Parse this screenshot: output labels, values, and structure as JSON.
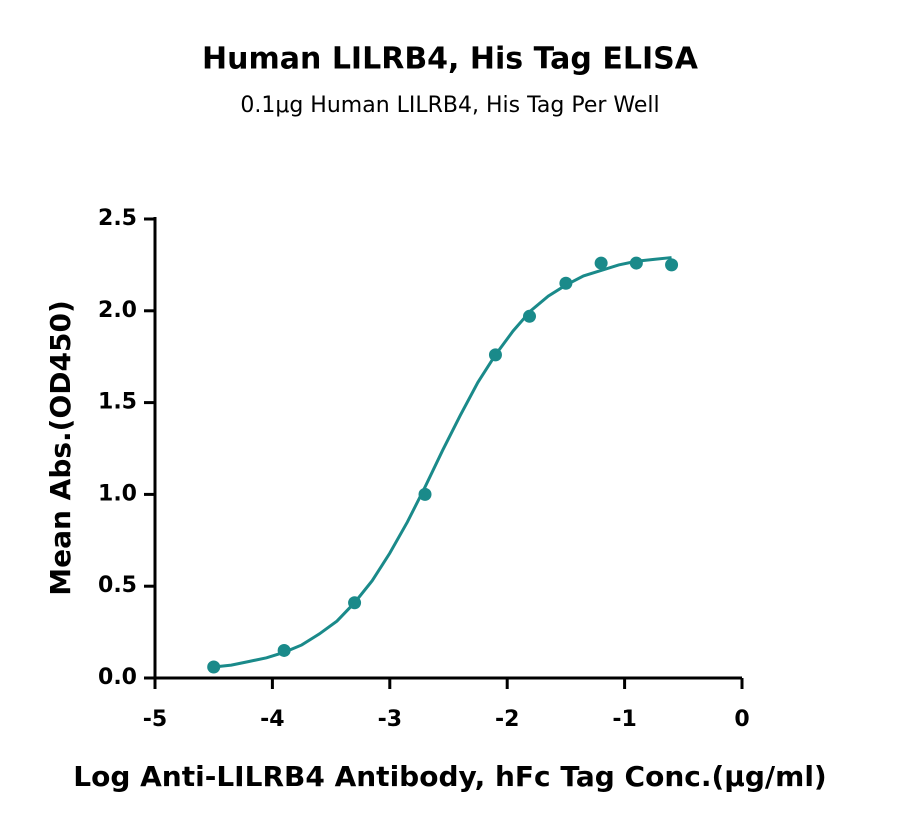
{
  "chart_data": {
    "type": "scatter",
    "title": "Human LILRB4, His Tag ELISA",
    "subtitle": "0.1μg Human LILRB4, His Tag Per Well",
    "x_label": "Log Anti-LILRB4 Antibody, hFc Tag Conc.(μg/ml)",
    "y_label": "Mean Abs.(OD450)",
    "xlim": [
      -5,
      0
    ],
    "xticks": [
      -5,
      -4,
      -3,
      -2,
      -1,
      0
    ],
    "ylim": [
      0,
      2.5
    ],
    "yticks": [
      {
        "value": 0,
        "label": "0.0"
      },
      0.5,
      {
        "value": 1,
        "label": "1.0"
      },
      1.5,
      {
        "value": 2,
        "label": "2.0"
      },
      2.5
    ],
    "series": [
      {
        "type": "scatter",
        "color": "#1a8a8a",
        "x": [
          -4.5,
          -3.9,
          -3.3,
          -2.7,
          -2.1,
          -1.81,
          -1.5,
          -1.2,
          -0.9,
          -0.6
        ],
        "values": [
          0.06,
          0.15,
          0.41,
          1.0,
          1.76,
          1.97,
          2.15,
          2.26,
          2.26,
          2.25
        ]
      },
      {
        "type": "line",
        "color": "#1a8a8a",
        "x": [
          -4.5,
          -4.35,
          -4.2,
          -4.05,
          -3.9,
          -3.75,
          -3.6,
          -3.45,
          -3.3,
          -3.15,
          -3.0,
          -2.85,
          -2.7,
          -2.55,
          -2.4,
          -2.25,
          -2.1,
          -1.95,
          -1.8,
          -1.65,
          -1.5,
          -1.35,
          -1.2,
          -1.05,
          -0.9,
          -0.75,
          -0.6
        ],
        "values": [
          0.06,
          0.07,
          0.09,
          0.11,
          0.14,
          0.18,
          0.24,
          0.31,
          0.41,
          0.53,
          0.68,
          0.85,
          1.04,
          1.24,
          1.43,
          1.61,
          1.76,
          1.89,
          2.0,
          2.08,
          2.14,
          2.19,
          2.22,
          2.25,
          2.27,
          2.28,
          2.29
        ]
      }
    ]
  }
}
